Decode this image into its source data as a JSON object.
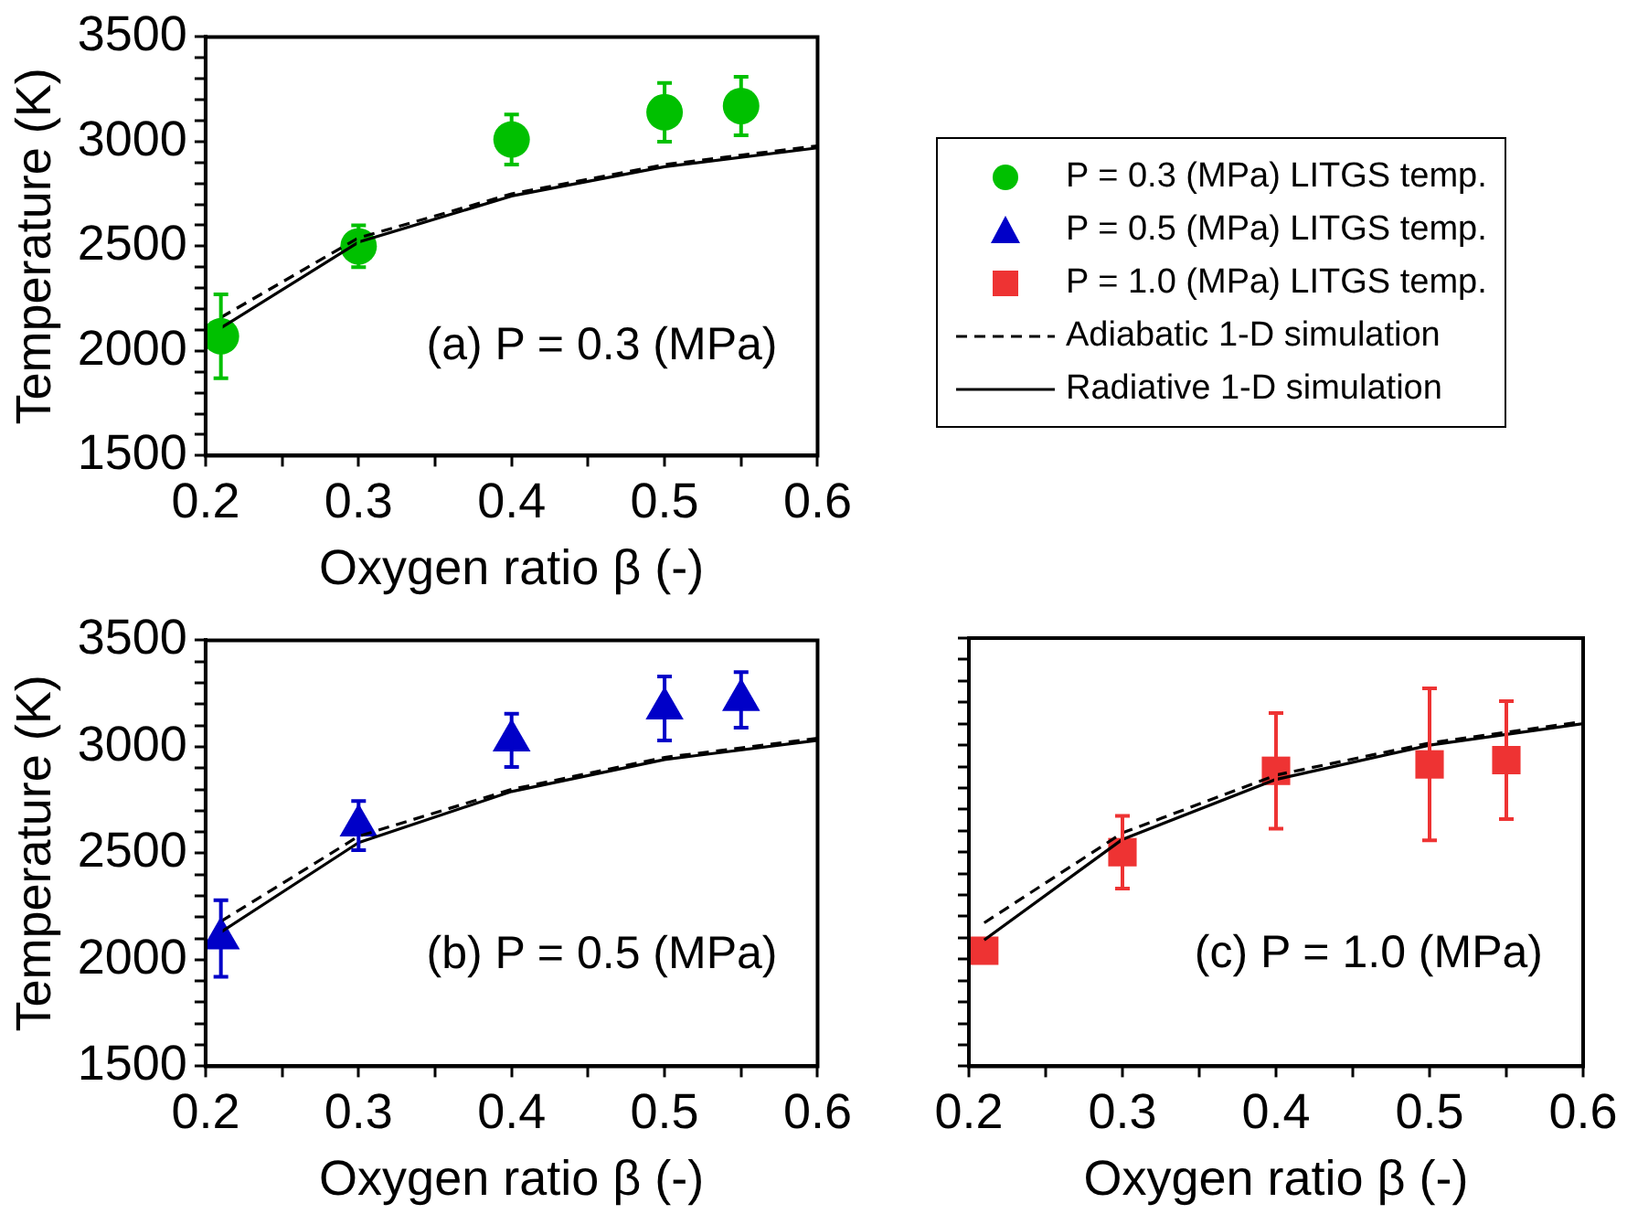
{
  "chart_data": [
    {
      "type": "scatter",
      "xlabel": "Oxygen ratio β (-)",
      "ylabel": "Temperature (K)",
      "annotations": [
        "(a) P = 0.3 (MPa)"
      ],
      "xlim": [
        0.2,
        0.6
      ],
      "ylim": [
        1500,
        3500
      ],
      "xticks": [
        0.2,
        {
          "value": 0.25,
          "label": null
        },
        0.3,
        {
          "value": 0.35,
          "label": null
        },
        0.4,
        {
          "value": 0.45,
          "label": null
        },
        0.5,
        {
          "value": 0.55,
          "label": null
        },
        0.6
      ],
      "yticks": [
        1500,
        {
          "value": 1600,
          "label": null
        },
        {
          "value": 1700,
          "label": null
        },
        {
          "value": 1800,
          "label": null
        },
        {
          "value": 1900,
          "label": null
        },
        2000,
        {
          "value": 2100,
          "label": null
        },
        {
          "value": 2200,
          "label": null
        },
        {
          "value": 2300,
          "label": null
        },
        {
          "value": 2400,
          "label": null
        },
        2500,
        {
          "value": 2600,
          "label": null
        },
        {
          "value": 2700,
          "label": null
        },
        {
          "value": 2800,
          "label": null
        },
        {
          "value": 2900,
          "label": null
        },
        3000,
        {
          "value": 3100,
          "label": null
        },
        {
          "value": 3200,
          "label": null
        },
        {
          "value": 3300,
          "label": null
        },
        {
          "value": 3400,
          "label": null
        },
        3500
      ],
      "grid": false,
      "legend": "right",
      "series": [
        {
          "name": "P = 0.3 (MPa) LITGS temp.",
          "color": "#00c000",
          "marker": "circle",
          "x": [
            0.21,
            0.3,
            0.4,
            0.5,
            0.55
          ],
          "values": [
            2070,
            2500,
            3010,
            3140,
            3170
          ],
          "errors": [
            200,
            100,
            120,
            140,
            140
          ]
        },
        {
          "type": "line",
          "name": "Adiabatic 1-D simulation",
          "color": "#000000",
          "marker": "none",
          "line_style": "dashed",
          "x": [
            0.21,
            0.3,
            0.4,
            0.5,
            0.6
          ],
          "values": [
            2160,
            2540,
            2750,
            2890,
            2980
          ]
        },
        {
          "type": "line",
          "name": "Radiative 1-D simulation",
          "color": "#000000",
          "marker": "none",
          "line_style": "solid",
          "x": [
            0.21,
            0.3,
            0.4,
            0.5,
            0.6
          ],
          "values": [
            2110,
            2520,
            2740,
            2880,
            2970
          ]
        }
      ]
    },
    {
      "type": "scatter",
      "xlabel": "Oxygen ratio β (-)",
      "ylabel": "Temperature (K)",
      "annotations": [
        "(b) P = 0.5 (MPa)"
      ],
      "xlim": [
        0.2,
        0.6
      ],
      "ylim": [
        1500,
        3500
      ],
      "xticks": [
        0.2,
        {
          "value": 0.25,
          "label": null
        },
        0.3,
        {
          "value": 0.35,
          "label": null
        },
        0.4,
        {
          "value": 0.45,
          "label": null
        },
        0.5,
        {
          "value": 0.55,
          "label": null
        },
        0.6
      ],
      "yticks": [
        1500,
        {
          "value": 1600,
          "label": null
        },
        {
          "value": 1700,
          "label": null
        },
        {
          "value": 1800,
          "label": null
        },
        {
          "value": 1900,
          "label": null
        },
        2000,
        {
          "value": 2100,
          "label": null
        },
        {
          "value": 2200,
          "label": null
        },
        {
          "value": 2300,
          "label": null
        },
        {
          "value": 2400,
          "label": null
        },
        2500,
        {
          "value": 2600,
          "label": null
        },
        {
          "value": 2700,
          "label": null
        },
        {
          "value": 2800,
          "label": null
        },
        {
          "value": 2900,
          "label": null
        },
        3000,
        {
          "value": 3100,
          "label": null
        },
        {
          "value": 3200,
          "label": null
        },
        {
          "value": 3300,
          "label": null
        },
        {
          "value": 3400,
          "label": null
        },
        3500
      ],
      "grid": false,
      "legend": "top right",
      "series": [
        {
          "name": "P = 0.5 (MPa) LITGS temp.",
          "color": "#0000c8",
          "marker": "triangle",
          "x": [
            0.21,
            0.3,
            0.4,
            0.5,
            0.55
          ],
          "values": [
            2100,
            2630,
            3030,
            3180,
            3220
          ],
          "errors": [
            180,
            115,
            125,
            150,
            130
          ]
        },
        {
          "type": "line",
          "color": "#000000",
          "marker": "none",
          "line_style": "dashed",
          "x": [
            0.21,
            0.3,
            0.4,
            0.5,
            0.6
          ],
          "values": [
            2180,
            2580,
            2800,
            2950,
            3040
          ]
        },
        {
          "type": "line",
          "color": "#000000",
          "marker": "none",
          "line_style": "solid",
          "x": [
            0.21,
            0.3,
            0.4,
            0.5,
            0.6
          ],
          "values": [
            2130,
            2550,
            2790,
            2940,
            3030
          ]
        }
      ]
    },
    {
      "type": "scatter",
      "xlabel": "Oxygen ratio β (-)",
      "annotations": [
        "(c) P = 1.0 (MPa)"
      ],
      "xlim": [
        0.2,
        0.6
      ],
      "ylim": [
        1500,
        3500
      ],
      "tick_labels": "x",
      "xticks": [
        0.2,
        {
          "value": 0.25,
          "label": null
        },
        0.3,
        {
          "value": 0.35,
          "label": null
        },
        0.4,
        {
          "value": 0.45,
          "label": null
        },
        0.5,
        {
          "value": 0.55,
          "label": null
        },
        0.6
      ],
      "yticks": [
        1500,
        {
          "value": 1600,
          "label": null
        },
        {
          "value": 1700,
          "label": null
        },
        {
          "value": 1800,
          "label": null
        },
        {
          "value": 1900,
          "label": null
        },
        2000,
        {
          "value": 2100,
          "label": null
        },
        {
          "value": 2200,
          "label": null
        },
        {
          "value": 2300,
          "label": null
        },
        {
          "value": 2400,
          "label": null
        },
        2500,
        {
          "value": 2600,
          "label": null
        },
        {
          "value": 2700,
          "label": null
        },
        {
          "value": 2800,
          "label": null
        },
        {
          "value": 2900,
          "label": null
        },
        3000,
        {
          "value": 3100,
          "label": null
        },
        {
          "value": 3200,
          "label": null
        },
        {
          "value": 3300,
          "label": null
        },
        {
          "value": 3400,
          "label": null
        },
        3500
      ],
      "grid": false,
      "legend": "top",
      "series": [
        {
          "name": "P = 1.0 (MPa) LITGS temp.",
          "color": "#ee3333",
          "marker": "square",
          "x": [
            0.21,
            0.3,
            0.4,
            0.5,
            0.55
          ],
          "values": [
            2040,
            2500,
            2880,
            2910,
            2930
          ],
          "errors": [
            null,
            170,
            270,
            355,
            275
          ]
        },
        {
          "type": "line",
          "color": "#000000",
          "marker": "none",
          "line_style": "dashed",
          "x": [
            0.21,
            0.3,
            0.4,
            0.5,
            0.6
          ],
          "values": [
            2170,
            2590,
            2860,
            3010,
            3110
          ]
        },
        {
          "type": "line",
          "color": "#000000",
          "marker": "none",
          "line_style": "solid",
          "x": [
            0.21,
            0.3,
            0.4,
            0.5,
            0.6
          ],
          "values": [
            2090,
            2560,
            2840,
            3000,
            3100
          ]
        }
      ]
    }
  ]
}
